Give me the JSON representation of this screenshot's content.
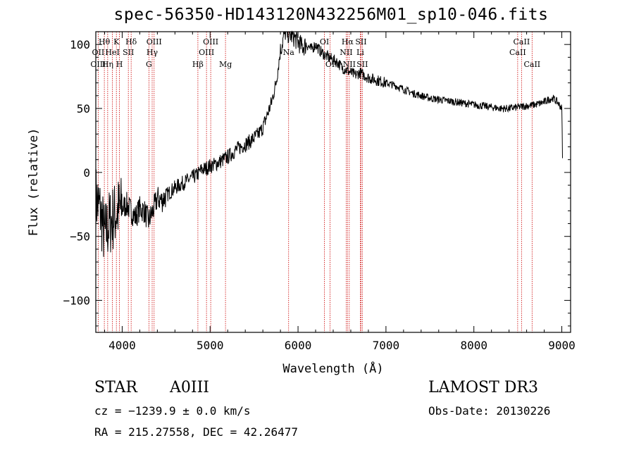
{
  "header": {
    "title": "spec-56350-HD143120N432256M01_sp10-046.fits"
  },
  "info": {
    "object_type": "STAR",
    "object_class": "A0III",
    "survey": "LAMOST DR3",
    "cz": "cz = −1239.9 ± 0.0 km/s",
    "obs_date": "Obs-Date: 20130226",
    "radec": "RA = 215.27558, DEC =  42.26477"
  },
  "chart_data": {
    "type": "line",
    "xlabel": "Wavelength (Å)",
    "ylabel": "Flux (relative)",
    "xlim": [
      3700,
      9100
    ],
    "ylim": [
      -125,
      110
    ],
    "xticks": [
      4000,
      5000,
      6000,
      7000,
      8000,
      9000
    ],
    "yticks": [
      -100,
      -50,
      0,
      50,
      100
    ],
    "ytick_labels": [
      "−100",
      "−50",
      "0",
      "50",
      "100"
    ],
    "grid": false,
    "series": [
      {
        "x": [
          3700,
          3750,
          3800,
          3850,
          3900,
          3950,
          4000,
          4050,
          4100,
          4150,
          4200,
          4250,
          4300,
          4350,
          4400,
          4450,
          4500,
          4550,
          4600,
          4650,
          4700,
          4750,
          4800,
          4850,
          4900,
          4950,
          5000,
          5050,
          5100,
          5150,
          5200,
          5250,
          5300,
          5350,
          5400,
          5450,
          5500,
          5550,
          5600,
          5650,
          5700,
          5750,
          5800,
          5850,
          5900,
          5950,
          6000,
          6050,
          6100,
          6150,
          6200,
          6250,
          6300,
          6350,
          6400,
          6450,
          6500,
          6550,
          6600,
          6650,
          6700,
          6750,
          6800,
          6900,
          7000,
          7100,
          7200,
          7300,
          7400,
          7500,
          7600,
          7700,
          7800,
          7900,
          8000,
          8100,
          8200,
          8300,
          8400,
          8500,
          8600,
          8700,
          8800,
          8850,
          8900,
          8950,
          9000,
          9010
        ],
        "y": [
          -20,
          -30,
          -50,
          -40,
          -35,
          -30,
          -28,
          -25,
          -30,
          -35,
          -28,
          -30,
          -38,
          -30,
          -20,
          -22,
          -18,
          -15,
          -12,
          -10,
          -8,
          -6,
          -4,
          -2,
          2,
          3,
          5,
          6,
          8,
          10,
          12,
          15,
          18,
          20,
          22,
          24,
          27,
          30,
          35,
          45,
          55,
          70,
          95,
          110,
          108,
          106,
          102,
          98,
          100,
          96,
          100,
          95,
          92,
          90,
          88,
          86,
          82,
          80,
          78,
          76,
          78,
          76,
          74,
          72,
          70,
          68,
          65,
          62,
          60,
          58,
          57,
          56,
          55,
          54,
          53,
          52,
          51,
          50,
          50,
          51,
          52,
          53,
          55,
          57,
          58,
          55,
          50,
          5
        ]
      }
    ],
    "annotations": [
      {
        "label": "Hθ",
        "x": 3797,
        "row": 1
      },
      {
        "label": "OII",
        "x": 3727,
        "row": 2
      },
      {
        "label": "OIII",
        "x": 3727,
        "row": 3
      },
      {
        "label": "K",
        "x": 3934,
        "row": 1
      },
      {
        "label": "HeI",
        "x": 3889,
        "row": 2
      },
      {
        "label": "Hη",
        "x": 3835,
        "row": 3
      },
      {
        "label": "SII",
        "x": 4070,
        "row": 2
      },
      {
        "label": "H",
        "x": 3969,
        "row": 3
      },
      {
        "label": "Hδ",
        "x": 4102,
        "row": 1
      },
      {
        "label": "OIII",
        "x": 4363,
        "row": 1
      },
      {
        "label": "Hγ",
        "x": 4341,
        "row": 2
      },
      {
        "label": "G",
        "x": 4304,
        "row": 3
      },
      {
        "label": "OIII",
        "x": 5007,
        "row": 1
      },
      {
        "label": "OIII",
        "x": 4959,
        "row": 2
      },
      {
        "label": "Hβ",
        "x": 4861,
        "row": 3
      },
      {
        "label": "Mg",
        "x": 5175,
        "row": 3
      },
      {
        "label": "Na",
        "x": 5893,
        "row": 2
      },
      {
        "label": "OI",
        "x": 6300,
        "row": 1
      },
      {
        "label": "OI",
        "x": 6364,
        "row": 3
      },
      {
        "label": "Hα",
        "x": 6563,
        "row": 1
      },
      {
        "label": "SII",
        "x": 6716,
        "row": 1
      },
      {
        "label": "NII",
        "x": 6548,
        "row": 2
      },
      {
        "label": "Li",
        "x": 6708,
        "row": 2
      },
      {
        "label": "NII",
        "x": 6583,
        "row": 3
      },
      {
        "label": "SII",
        "x": 6731,
        "row": 3
      },
      {
        "label": "CaII",
        "x": 8542,
        "row": 1
      },
      {
        "label": "CaII",
        "x": 8498,
        "row": 2
      },
      {
        "label": "CaII",
        "x": 8662,
        "row": 3
      }
    ],
    "line_positions": [
      3727,
      3797,
      3835,
      3889,
      3934,
      3969,
      4070,
      4102,
      4304,
      4341,
      4363,
      4861,
      4959,
      5007,
      5175,
      5893,
      6300,
      6364,
      6548,
      6563,
      6583,
      6708,
      6716,
      6731,
      8498,
      8542,
      8662
    ],
    "colors": {
      "line": "#000000",
      "markers": "#cc0000",
      "axes": "#000000"
    }
  }
}
